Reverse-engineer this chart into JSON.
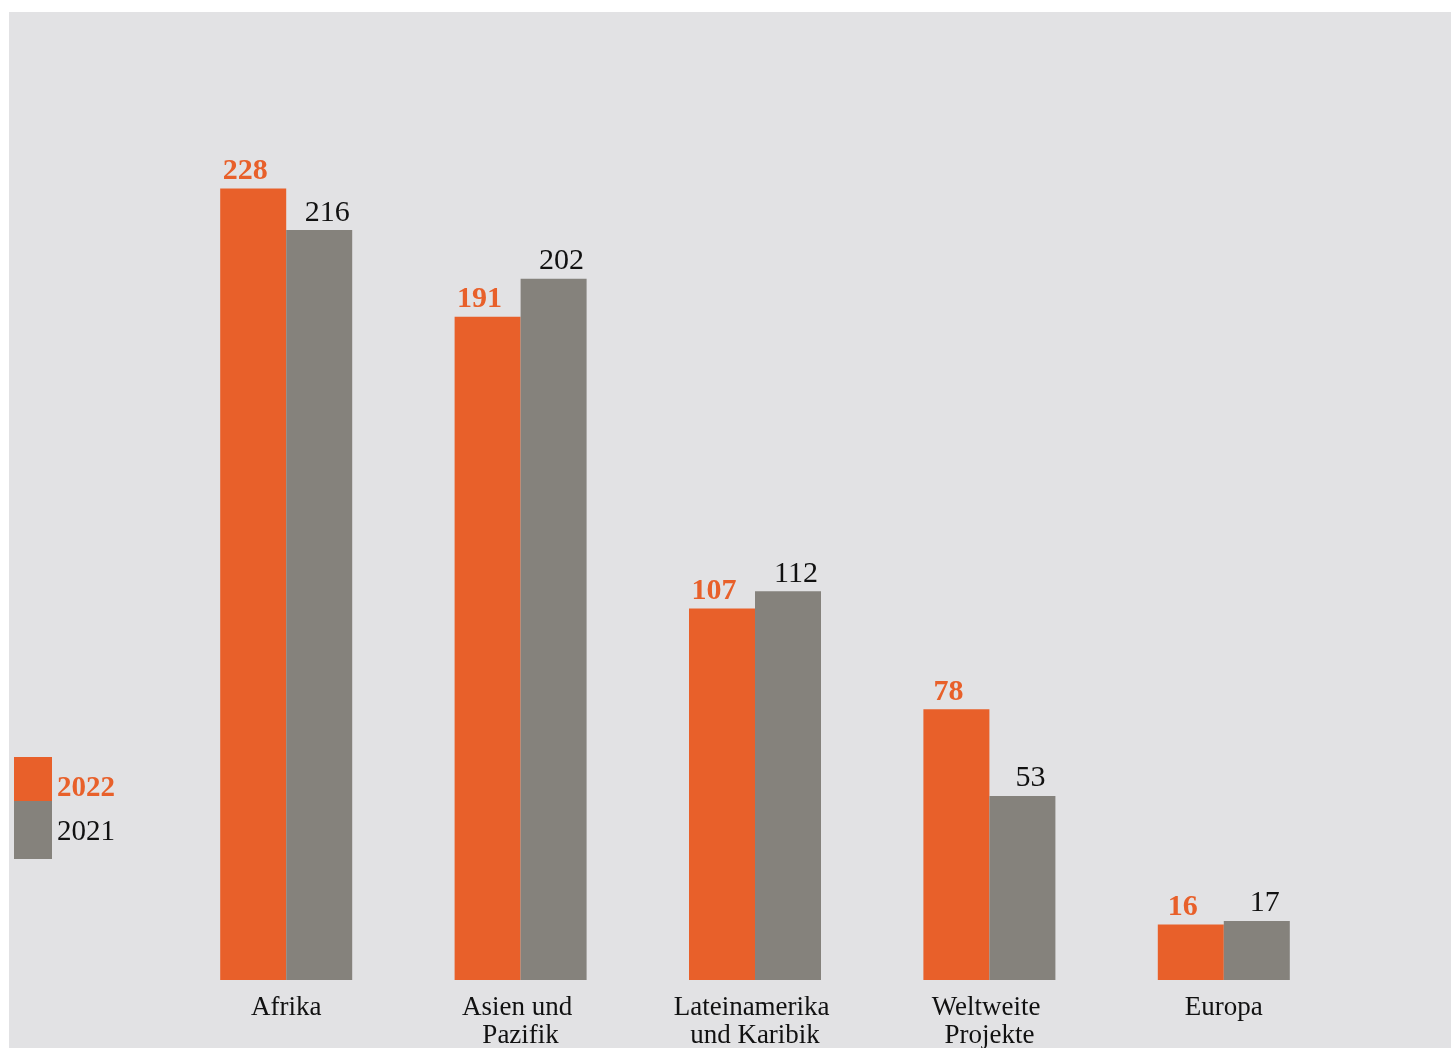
{
  "chart_data": {
    "type": "bar",
    "categories": [
      "Afrika",
      "Asien und Pazifik",
      "Lateinamerika und Karibik",
      "Weltweite Projekte",
      "Europa"
    ],
    "series": [
      {
        "name": "2022",
        "color": "#e8602a",
        "values": [
          228,
          191,
          107,
          78,
          16
        ]
      },
      {
        "name": "2021",
        "color": "#85827c",
        "values": [
          216,
          202,
          112,
          53,
          17
        ]
      }
    ],
    "data_labels": true,
    "legend": "left"
  }
}
